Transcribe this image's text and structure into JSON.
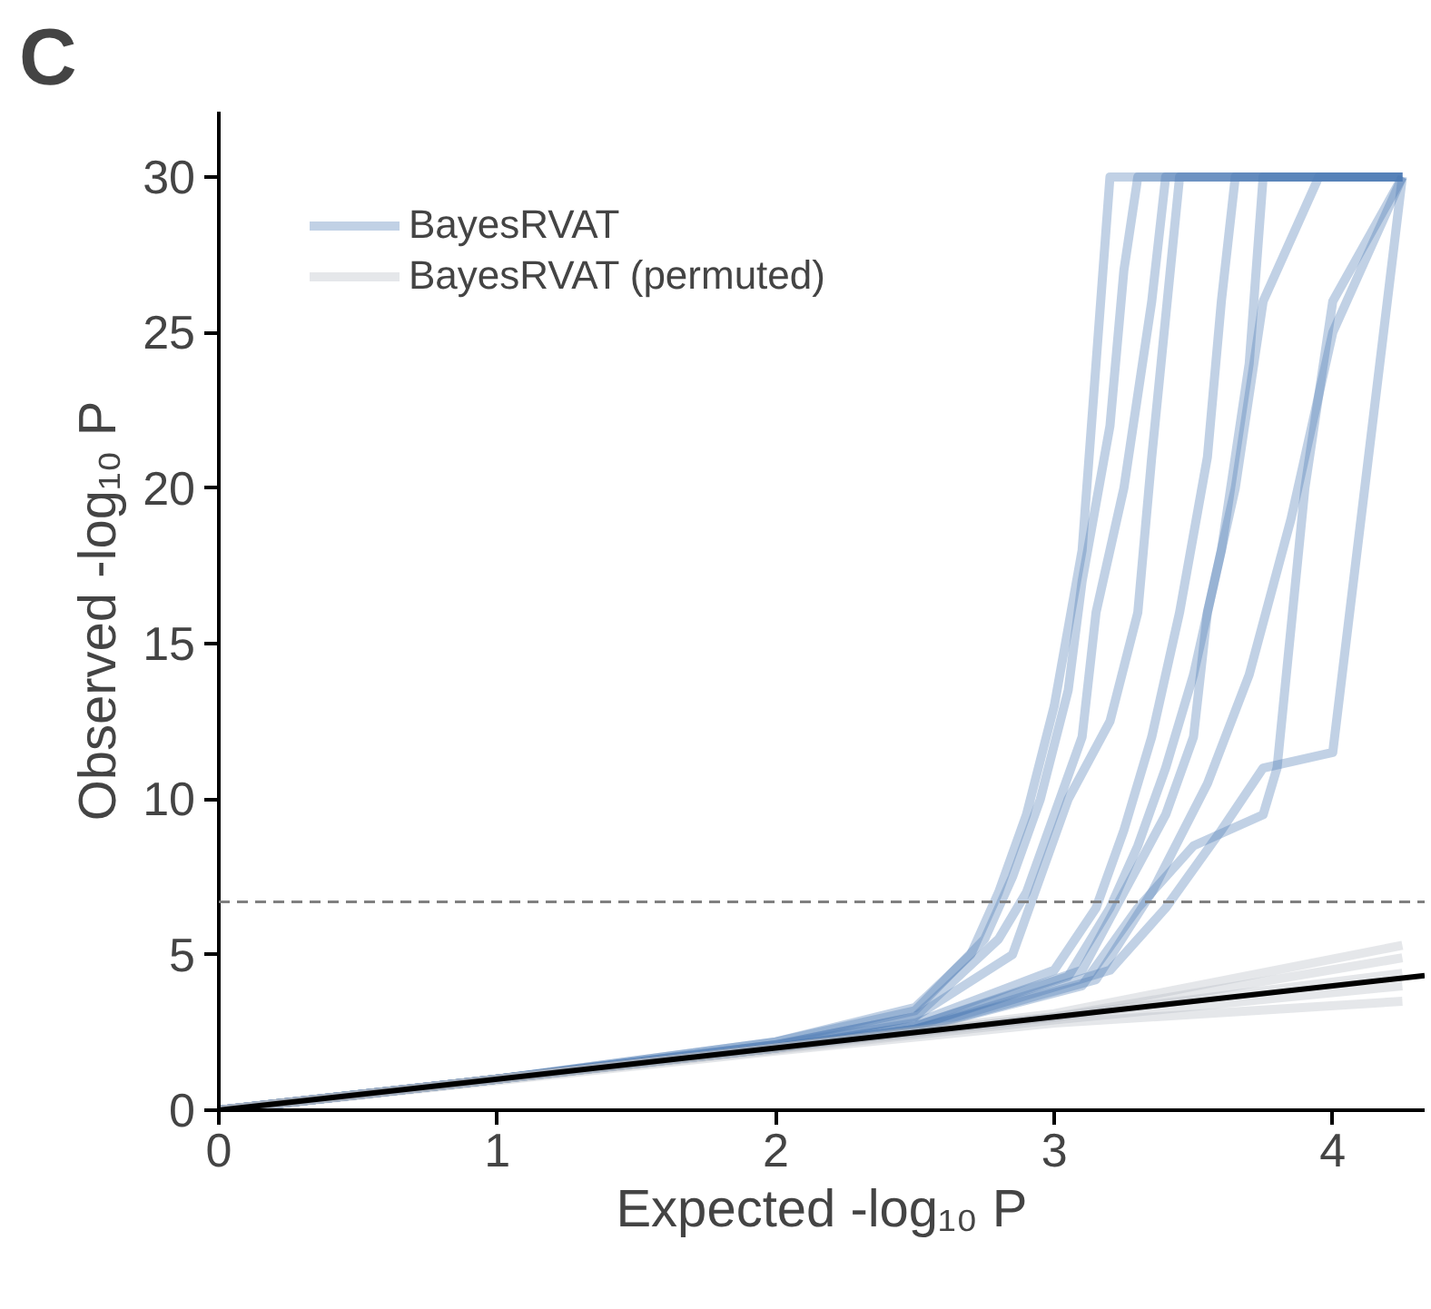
{
  "chart_data": {
    "type": "line",
    "title": "C",
    "xlabel": "Expected -log₁₀ P",
    "ylabel": "Observed -log₁₀ P",
    "xlim": [
      0,
      4.33
    ],
    "ylim": [
      0,
      32.1
    ],
    "xticks": [
      0,
      1,
      2,
      3,
      4
    ],
    "yticks": [
      0,
      5,
      10,
      15,
      20,
      25,
      30
    ],
    "grid": false,
    "legend": "top left",
    "marker": "none",
    "line_style": "solid",
    "ref_lines": [
      {
        "axis": "y",
        "value": 6.7,
        "color": "#808080",
        "line_style": "dashed"
      }
    ],
    "series": [
      {
        "name": "BayesRVAT",
        "color": "#4c7ab4",
        "x": [
          0,
          1,
          2,
          2.5,
          2.7,
          2.8,
          2.9,
          3.0,
          3.1,
          3.15,
          3.2,
          4.25
        ],
        "values": [
          0,
          1,
          2.2,
          3.3,
          5,
          7,
          9.5,
          13,
          18,
          24,
          30,
          30
        ]
      },
      {
        "color": "#4c7ab4",
        "x": [
          0,
          1,
          2,
          2.5,
          2.75,
          2.85,
          2.95,
          3.05,
          3.1,
          3.2,
          3.25,
          3.3,
          4.25
        ],
        "values": [
          0,
          1,
          2.2,
          3.2,
          5.5,
          7.5,
          10,
          13.5,
          17,
          22,
          27,
          30,
          30
        ]
      },
      {
        "color": "#4c7ab4",
        "x": [
          0,
          1,
          2,
          2.5,
          2.8,
          2.9,
          3.0,
          3.1,
          3.15,
          3.25,
          3.35,
          3.4,
          4.25
        ],
        "values": [
          0,
          1,
          2.1,
          3,
          5.5,
          7,
          9.5,
          12,
          16,
          20,
          26,
          30,
          30
        ]
      },
      {
        "color": "#4c7ab4",
        "x": [
          0,
          1,
          2,
          2.5,
          2.85,
          2.95,
          3.05,
          3.2,
          3.3,
          3.35,
          3.45,
          4.25
        ],
        "values": [
          0,
          1,
          2.1,
          3,
          5,
          7.5,
          10,
          12.5,
          16,
          21,
          30,
          30
        ]
      },
      {
        "color": "#4c7ab4",
        "x": [
          0,
          1,
          2,
          2.5,
          3.0,
          3.15,
          3.25,
          3.35,
          3.45,
          3.55,
          3.6,
          3.65,
          4.25
        ],
        "values": [
          0,
          1,
          2.1,
          2.8,
          4.5,
          6.5,
          9,
          12,
          16,
          21,
          26,
          30,
          30
        ]
      },
      {
        "color": "#4c7ab4",
        "x": [
          0,
          1,
          2,
          2.5,
          3.05,
          3.2,
          3.3,
          3.4,
          3.5,
          3.6,
          3.7,
          3.75,
          4.25
        ],
        "values": [
          0,
          1,
          2,
          2.7,
          4.3,
          6.5,
          8.5,
          11,
          14,
          18,
          24,
          30,
          30
        ]
      },
      {
        "color": "#4c7ab4",
        "x": [
          0,
          1,
          2,
          2.5,
          3.1,
          3.25,
          3.4,
          3.5,
          3.55,
          3.65,
          3.75,
          3.95,
          4.25
        ],
        "values": [
          0,
          1,
          2,
          2.7,
          4.5,
          7,
          9.5,
          12,
          16,
          20,
          26,
          30,
          30
        ]
      },
      {
        "color": "#4c7ab4",
        "x": [
          0,
          1,
          2,
          2.5,
          3.1,
          3.3,
          3.5,
          3.75,
          3.8,
          3.9,
          4.0,
          4.25
        ],
        "values": [
          0,
          1,
          2,
          2.6,
          4,
          6.5,
          8.5,
          9.5,
          11,
          20,
          26,
          30
        ]
      },
      {
        "color": "#4c7ab4",
        "x": [
          0,
          1,
          2,
          2.5,
          3.15,
          3.35,
          3.55,
          3.7,
          3.85,
          4.0,
          4.25
        ],
        "values": [
          0,
          1,
          2,
          2.6,
          4.2,
          7,
          10.5,
          14,
          19,
          25,
          30
        ]
      },
      {
        "color": "#4c7ab4",
        "x": [
          0,
          1,
          2,
          2.5,
          3.2,
          3.4,
          3.6,
          3.75,
          4.0,
          4.25
        ],
        "values": [
          0,
          1,
          2,
          2.6,
          4.5,
          6.5,
          9,
          11,
          11.5,
          30
        ]
      },
      {
        "name": "BayesRVAT (permuted)",
        "color": "#b4b9c2",
        "x": [
          0,
          1,
          2,
          3,
          4.25
        ],
        "values": [
          0,
          1,
          2,
          3.1,
          5.3
        ]
      },
      {
        "color": "#b4b9c2",
        "x": [
          0,
          1,
          2,
          3,
          4.25
        ],
        "values": [
          0,
          1,
          2,
          3,
          4.9
        ]
      },
      {
        "color": "#b4b9c2",
        "x": [
          0,
          1,
          2,
          3,
          4.25
        ],
        "values": [
          0,
          1,
          2,
          3,
          4.4
        ]
      },
      {
        "color": "#b4b9c2",
        "x": [
          0,
          1,
          2,
          3,
          4.25
        ],
        "values": [
          0,
          1,
          1.95,
          2.9,
          4.0
        ]
      },
      {
        "color": "#b4b9c2",
        "x": [
          0,
          1,
          2,
          3,
          4.25
        ],
        "values": [
          0,
          0.95,
          1.9,
          2.8,
          3.5
        ]
      },
      {
        "color": "#000000",
        "x": [
          0,
          4.33
        ],
        "values": [
          0,
          4.33
        ]
      }
    ]
  }
}
